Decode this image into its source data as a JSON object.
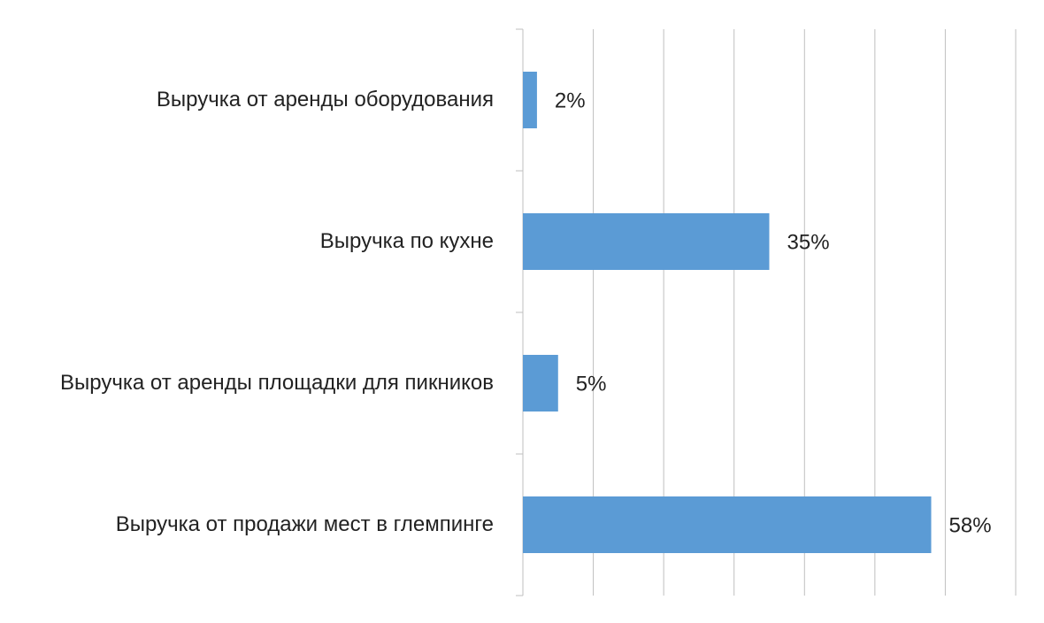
{
  "chart_data": {
    "type": "bar",
    "orientation": "horizontal",
    "categories": [
      "Выручка от аренды оборудования",
      "Выручка по кухне",
      "Выручка от аренды площадки для пикников",
      "Выручка от продажи мест в глемпинге"
    ],
    "values": [
      2,
      35,
      5,
      58
    ],
    "value_labels": [
      "2%",
      "35%",
      "5%",
      "58%"
    ],
    "color": "#5b9bd5",
    "xlim": [
      0,
      70
    ],
    "xticks": [
      0,
      10,
      20,
      30,
      40,
      50,
      60,
      70
    ],
    "grid": true
  }
}
